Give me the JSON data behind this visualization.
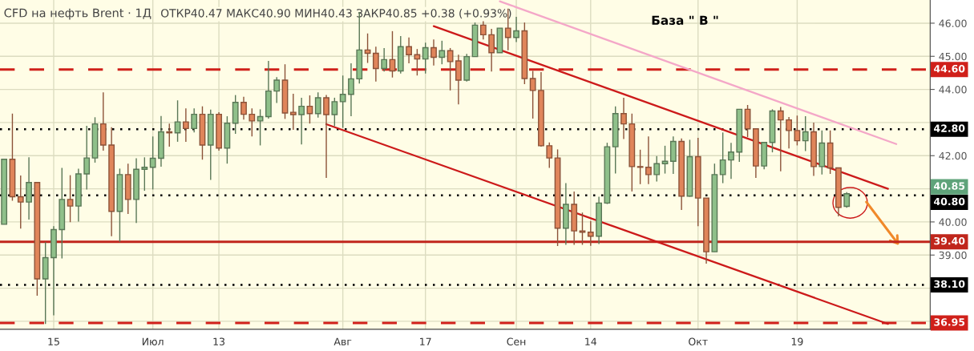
{
  "chart_data": {
    "type": "candlestick",
    "title": "CFD на нефть Brent · 1Д",
    "subtitle": "ОТКР40.47 МАКС40.90 МИН40.43 ЗАКР40.85 +0.38 (+0.93%)",
    "annotations": [
      "База \" В \"",
      "40.85"
    ],
    "categories": [
      null,
      null,
      null,
      null,
      null,
      null,
      "15",
      null,
      null,
      null,
      null,
      null,
      null,
      null,
      null,
      null,
      null,
      null,
      "Июл",
      null,
      null,
      null,
      null,
      null,
      null,
      null,
      "13",
      null,
      null,
      null,
      null,
      null,
      null,
      null,
      null,
      null,
      null,
      null,
      null,
      null,
      null,
      "Авг",
      null,
      null,
      null,
      null,
      null,
      null,
      null,
      null,
      null,
      "17",
      null,
      null,
      null,
      null,
      null,
      null,
      null,
      null,
      null,
      null,
      "Сен",
      null,
      null,
      null,
      null,
      null,
      null,
      null,
      null,
      "14",
      null,
      null,
      null,
      null,
      null,
      null,
      null,
      null,
      null,
      null,
      null,
      null,
      "Окт",
      null,
      null,
      null,
      null,
      null,
      null,
      null,
      null,
      null,
      null,
      null,
      "19",
      null,
      null,
      null,
      null,
      null,
      null,
      null,
      null,
      null,
      null,
      null,
      null,
      null,
      null,
      null
    ],
    "ohlc": [
      [
        39.93,
        41.89,
        39.93,
        41.89
      ],
      [
        41.89,
        43.27,
        40.64,
        40.76
      ],
      [
        40.76,
        41.4,
        39.8,
        40.6
      ],
      [
        40.6,
        41.95,
        40.07,
        41.19
      ],
      [
        41.19,
        41.19,
        37.77,
        38.28
      ],
      [
        38.28,
        39.39,
        36.92,
        38.92
      ],
      [
        38.92,
        39.87,
        37.18,
        39.77
      ],
      [
        39.77,
        41.63,
        38.9,
        40.68
      ],
      [
        40.68,
        41.41,
        39.99,
        40.48
      ],
      [
        40.48,
        41.61,
        40.01,
        41.45
      ],
      [
        41.45,
        42.9,
        40.98,
        41.93
      ],
      [
        41.93,
        43.16,
        41.79,
        42.96
      ],
      [
        42.96,
        43.91,
        42.15,
        42.32
      ],
      [
        42.32,
        42.86,
        39.57,
        40.32
      ],
      [
        40.32,
        41.61,
        39.4,
        41.43
      ],
      [
        41.43,
        41.76,
        40.24,
        40.68
      ],
      [
        40.68,
        41.92,
        39.97,
        41.59
      ],
      [
        41.59,
        41.95,
        40.94,
        41.65
      ],
      [
        41.65,
        42.58,
        40.98,
        41.92
      ],
      [
        41.92,
        43.2,
        41.67,
        42.72
      ],
      [
        42.72,
        42.97,
        42.27,
        42.69
      ],
      [
        42.69,
        43.67,
        42.42,
        43.02
      ],
      [
        43.02,
        43.43,
        42.42,
        42.82
      ],
      [
        42.82,
        43.43,
        42.7,
        43.25
      ],
      [
        43.25,
        43.49,
        41.88,
        42.32
      ],
      [
        42.32,
        43.39,
        41.27,
        43.25
      ],
      [
        43.25,
        43.31,
        42.15,
        42.23
      ],
      [
        42.23,
        43.19,
        41.76,
        42.98
      ],
      [
        42.98,
        43.83,
        42.66,
        43.61
      ],
      [
        43.61,
        43.78,
        43.09,
        43.25
      ],
      [
        43.25,
        43.43,
        42.58,
        43.05
      ],
      [
        43.05,
        43.4,
        42.31,
        43.18
      ],
      [
        43.18,
        44.86,
        43.12,
        43.95
      ],
      [
        43.95,
        44.37,
        43.59,
        44.28
      ],
      [
        44.28,
        44.76,
        43.11,
        43.29
      ],
      [
        43.31,
        43.87,
        42.78,
        43.24
      ],
      [
        43.24,
        43.75,
        42.34,
        43.49
      ],
      [
        43.49,
        43.82,
        42.97,
        43.27
      ],
      [
        43.27,
        43.91,
        43.15,
        43.75
      ],
      [
        43.75,
        43.83,
        41.33,
        43.24
      ],
      [
        43.24,
        43.75,
        42.89,
        43.63
      ],
      [
        43.63,
        44.42,
        42.84,
        43.85
      ],
      [
        43.85,
        44.79,
        43.19,
        44.32
      ],
      [
        44.32,
        46.34,
        44.18,
        45.19
      ],
      [
        45.19,
        45.69,
        44.8,
        45.09
      ],
      [
        45.09,
        45.29,
        44.24,
        44.63
      ],
      [
        44.63,
        45.25,
        44.54,
        44.9
      ],
      [
        44.9,
        45.76,
        44.36,
        44.56
      ],
      [
        44.56,
        45.61,
        44.48,
        45.29
      ],
      [
        45.29,
        45.57,
        44.79,
        45.05
      ],
      [
        45.05,
        45.22,
        44.42,
        44.92
      ],
      [
        44.92,
        45.41,
        44.48,
        45.26
      ],
      [
        45.26,
        45.51,
        44.72,
        44.97
      ],
      [
        44.97,
        45.47,
        44.76,
        45.17
      ],
      [
        45.17,
        45.25,
        43.97,
        44.84
      ],
      [
        44.86,
        45.05,
        43.55,
        44.28
      ],
      [
        44.28,
        45.07,
        44.24,
        44.99
      ],
      [
        44.99,
        46.02,
        44.99,
        45.94
      ],
      [
        45.94,
        46.06,
        45.51,
        45.65
      ],
      [
        45.65,
        45.83,
        44.54,
        45.11
      ],
      [
        45.11,
        45.85,
        45.11,
        45.85
      ],
      [
        45.85,
        46.44,
        45.18,
        45.57
      ],
      [
        45.57,
        46.19,
        45.43,
        45.77
      ],
      [
        45.77,
        46.02,
        44.16,
        44.33
      ],
      [
        44.33,
        44.56,
        43.12,
        43.97
      ],
      [
        43.97,
        44.52,
        42.27,
        42.3
      ],
      [
        42.3,
        42.4,
        41.63,
        41.93
      ],
      [
        41.93,
        42.19,
        39.27,
        39.81
      ],
      [
        39.81,
        41.17,
        39.31,
        40.53
      ],
      [
        40.53,
        40.92,
        39.31,
        39.73
      ],
      [
        39.73,
        40.28,
        39.31,
        39.69
      ],
      [
        39.69,
        40.03,
        39.28,
        39.57
      ],
      [
        39.57,
        40.76,
        39.33,
        40.57
      ],
      [
        40.57,
        42.39,
        40.54,
        42.27
      ],
      [
        42.27,
        43.49,
        41.46,
        43.27
      ],
      [
        43.27,
        43.75,
        42.5,
        42.96
      ],
      [
        42.96,
        43.27,
        40.92,
        41.67
      ],
      [
        41.67,
        42.18,
        41.14,
        41.65
      ],
      [
        41.65,
        42.58,
        41.14,
        41.43
      ],
      [
        41.43,
        41.99,
        41.22,
        41.76
      ],
      [
        41.76,
        42.3,
        41.46,
        41.83
      ],
      [
        41.83,
        42.58,
        41.45,
        42.43
      ],
      [
        42.43,
        42.52,
        40.36,
        40.78
      ],
      [
        40.78,
        42.48,
        40.76,
        41.97
      ],
      [
        41.97,
        42.54,
        39.87,
        40.72
      ],
      [
        40.72,
        40.72,
        38.74,
        39.1
      ],
      [
        39.1,
        41.76,
        39.1,
        41.43
      ],
      [
        41.43,
        42.7,
        41.17,
        41.87
      ],
      [
        41.87,
        42.39,
        41.3,
        42.11
      ],
      [
        42.11,
        43.4,
        41.81,
        43.4
      ],
      [
        43.4,
        43.53,
        42.56,
        42.81
      ],
      [
        42.81,
        42.81,
        41.33,
        41.69
      ],
      [
        41.69,
        42.4,
        41.59,
        42.4
      ],
      [
        42.4,
        43.4,
        42.1,
        43.35
      ],
      [
        43.35,
        43.47,
        41.53,
        43.08
      ],
      [
        43.08,
        43.17,
        42.22,
        42.76
      ],
      [
        42.76,
        43.21,
        42.31,
        42.45
      ],
      [
        42.45,
        43.19,
        42.14,
        42.72
      ],
      [
        42.72,
        43.0,
        41.39,
        41.67
      ],
      [
        41.67,
        42.76,
        41.43,
        42.38
      ],
      [
        42.38,
        42.76,
        41.45,
        41.63
      ],
      [
        41.63,
        41.63,
        40.17,
        40.44
      ],
      [
        40.47,
        40.9,
        40.43,
        40.85
      ],
      null,
      null,
      null,
      null,
      null,
      null,
      null,
      null,
      null
    ],
    "colors": [
      "#8fc08a",
      "#e0855a",
      "#e0855a",
      "#8fc08a",
      "#e0855a",
      "#8fc08a",
      "#8fc08a",
      "#8fc08a",
      "#e0855a",
      "#8fc08a",
      "#8fc08a",
      "#8fc08a",
      "#e0855a",
      "#e0855a",
      "#8fc08a",
      "#e0855a",
      "#8fc08a",
      "#8fc08a",
      "#8fc08a",
      "#8fc08a",
      "#e0855a",
      "#8fc08a",
      "#e0855a",
      "#8fc08a",
      "#e0855a",
      "#8fc08a",
      "#e0855a",
      "#8fc08a",
      "#8fc08a",
      "#e0855a",
      "#e0855a",
      "#8fc08a",
      "#8fc08a",
      "#8fc08a",
      "#e0855a",
      "#e0855a",
      "#8fc08a",
      "#e0855a",
      "#8fc08a",
      "#e0855a",
      "#8fc08a",
      "#8fc08a",
      "#8fc08a",
      "#8fc08a",
      "#e0855a",
      "#e0855a",
      "#8fc08a",
      "#e0855a",
      "#8fc08a",
      "#e0855a",
      "#e0855a",
      "#8fc08a",
      "#e0855a",
      "#8fc08a",
      "#e0855a",
      "#e0855a",
      "#8fc08a",
      "#8fc08a",
      "#e0855a",
      "#e0855a",
      "#8fc08a",
      "#e0855a",
      "#8fc08a",
      "#e0855a",
      "#e0855a",
      "#e0855a",
      "#e0855a",
      "#e0855a",
      "#8fc08a",
      "#e0855a",
      "#e0855a",
      "#e0855a",
      "#8fc08a",
      "#8fc08a",
      "#8fc08a",
      "#e0855a",
      "#e0855a",
      "#e0855a",
      "#e0855a",
      "#8fc08a",
      "#8fc08a",
      "#8fc08a",
      "#e0855a",
      "#8fc08a",
      "#e0855a",
      "#e0855a",
      "#8fc08a",
      "#8fc08a",
      "#8fc08a",
      "#8fc08a",
      "#e0855a",
      "#e0855a",
      "#8fc08a",
      "#8fc08a",
      "#e0855a",
      "#e0855a",
      "#e0855a",
      "#8fc08a",
      "#e0855a",
      "#8fc08a",
      "#e0855a",
      "#e0855a",
      "#8fc08a",
      null,
      null,
      null,
      null,
      null,
      null,
      null,
      null,
      null
    ],
    "series": [
      {
        "type": "line",
        "color": "#f4a7c8",
        "values": [
          null,
          null,
          null,
          null,
          null,
          null,
          null,
          null,
          null,
          null,
          null,
          null,
          null,
          null,
          null,
          null,
          null,
          null,
          null,
          null,
          null,
          null,
          null,
          null,
          null,
          null,
          null,
          null,
          null,
          null,
          null,
          null,
          null,
          null,
          null,
          null,
          null,
          null,
          null,
          null,
          null,
          null,
          null,
          null,
          null,
          null,
          null,
          null,
          null,
          null,
          null,
          null,
          null,
          null,
          null,
          null,
          null,
          null,
          null,
          null,
          46.66,
          null,
          null,
          null,
          null,
          null,
          null,
          null,
          null,
          null,
          null,
          null,
          null,
          null,
          null,
          null,
          null,
          null,
          null,
          null,
          null,
          null,
          null,
          null,
          null,
          null,
          null,
          null,
          null,
          null,
          null,
          null,
          null,
          null,
          null,
          null,
          null,
          null,
          null,
          null,
          null,
          null,
          null,
          null,
          null,
          null,
          null,
          null,
          42.35,
          null,
          null,
          null
        ]
      },
      {
        "type": "line",
        "color": "#cc1a1a",
        "values": [
          null,
          null,
          null,
          null,
          null,
          null,
          null,
          null,
          null,
          null,
          null,
          null,
          null,
          null,
          null,
          null,
          null,
          null,
          null,
          null,
          null,
          null,
          null,
          null,
          null,
          null,
          null,
          null,
          null,
          null,
          null,
          null,
          null,
          null,
          null,
          null,
          null,
          null,
          null,
          null,
          null,
          null,
          null,
          null,
          null,
          null,
          null,
          null,
          null,
          null,
          null,
          null,
          45.91,
          null,
          null,
          null,
          null,
          null,
          null,
          null,
          null,
          null,
          null,
          null,
          null,
          null,
          null,
          null,
          null,
          null,
          null,
          null,
          null,
          null,
          null,
          null,
          null,
          null,
          null,
          null,
          null,
          null,
          null,
          null,
          null,
          null,
          null,
          null,
          null,
          null,
          null,
          null,
          null,
          null,
          null,
          null,
          null,
          null,
          null,
          null,
          null,
          null,
          null,
          null,
          null,
          null,
          null,
          41.0,
          null,
          null,
          null,
          null
        ]
      },
      {
        "type": "line",
        "color": "#cc1a1a",
        "values": [
          null,
          null,
          null,
          null,
          null,
          null,
          null,
          null,
          null,
          null,
          null,
          null,
          null,
          null,
          null,
          null,
          null,
          null,
          null,
          null,
          null,
          null,
          null,
          null,
          null,
          null,
          null,
          null,
          null,
          null,
          null,
          null,
          null,
          null,
          null,
          null,
          null,
          null,
          null,
          42.95,
          null,
          null,
          null,
          null,
          null,
          null,
          null,
          null,
          null,
          null,
          null,
          null,
          null,
          null,
          null,
          null,
          null,
          null,
          null,
          null,
          null,
          null,
          null,
          null,
          null,
          null,
          null,
          null,
          null,
          null,
          null,
          null,
          null,
          null,
          null,
          null,
          null,
          null,
          null,
          null,
          null,
          null,
          null,
          null,
          null,
          null,
          null,
          null,
          null,
          null,
          null,
          null,
          null,
          null,
          null,
          null,
          null,
          null,
          null,
          null,
          null,
          null,
          null,
          null,
          null,
          null,
          null,
          36.92,
          null,
          null,
          null,
          null
        ]
      }
    ],
    "ref_lines": [
      {
        "axis": "y",
        "value": 44.6,
        "label": "44.60",
        "color": "#d0201a",
        "line_style": "dashed"
      },
      {
        "axis": "y",
        "value": 42.8,
        "label": "42.80",
        "color": "#000000",
        "line_style": "dotted"
      },
      {
        "axis": "y",
        "value": 40.8,
        "label": "40.80",
        "color": "#000000",
        "line_style": "dotted"
      },
      {
        "axis": "y",
        "value": 39.4,
        "label": "39.40",
        "color": "#c0261c",
        "line_style": "solid"
      },
      {
        "axis": "y",
        "value": 38.1,
        "label": "38.10",
        "color": "#000000",
        "line_style": "dotted"
      },
      {
        "axis": "y",
        "value": 36.95,
        "label": "36.95",
        "color": "#d0201a",
        "line_style": "dashed"
      }
    ],
    "ylim": [
      36.76,
      46.7
    ],
    "yticks": [
      {
        "value": 37,
        "label": null
      },
      {
        "value": 38,
        "label": null
      },
      {
        "value": 39,
        "label": "39.00"
      },
      {
        "value": 40,
        "label": "40.00"
      },
      {
        "value": 41,
        "label": null
      },
      {
        "value": 42,
        "label": "42.00"
      },
      {
        "value": 43,
        "label": null
      },
      {
        "value": 44,
        "label": "44.00"
      },
      {
        "value": 45,
        "label": "45.00"
      },
      {
        "value": 46,
        "label": "46.00"
      }
    ],
    "grid": true
  }
}
